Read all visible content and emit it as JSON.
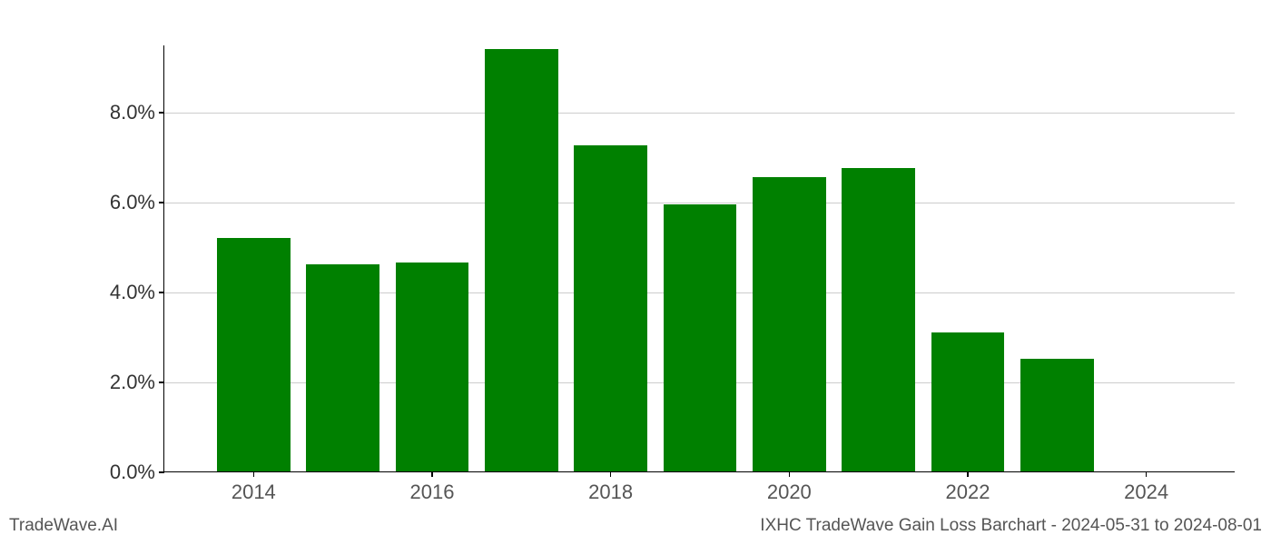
{
  "chart": {
    "type": "bar",
    "years": [
      2014,
      2015,
      2016,
      2017,
      2018,
      2019,
      2020,
      2021,
      2022,
      2023
    ],
    "values": [
      5.2,
      4.6,
      4.65,
      9.4,
      7.25,
      5.95,
      6.55,
      6.75,
      3.1,
      2.5
    ],
    "bar_color": "#008000",
    "background_color": "#ffffff",
    "grid_color": "#cccccc",
    "axis_color": "#000000",
    "xlim": [
      2013,
      2025
    ],
    "ylim": [
      0,
      9.5
    ],
    "yticks": [
      0,
      2,
      4,
      6,
      8
    ],
    "ytick_labels": [
      "0.0%",
      "2.0%",
      "4.0%",
      "6.0%",
      "8.0%"
    ],
    "xticks": [
      2014,
      2016,
      2018,
      2020,
      2022,
      2024
    ],
    "xtick_labels": [
      "2014",
      "2016",
      "2018",
      "2020",
      "2022",
      "2024"
    ],
    "bar_width_years": 0.82,
    "tick_fontsize": 22,
    "footer_fontsize": 19
  },
  "footer": {
    "left": "TradeWave.AI",
    "right": "IXHC TradeWave Gain Loss Barchart - 2024-05-31 to 2024-08-01"
  }
}
